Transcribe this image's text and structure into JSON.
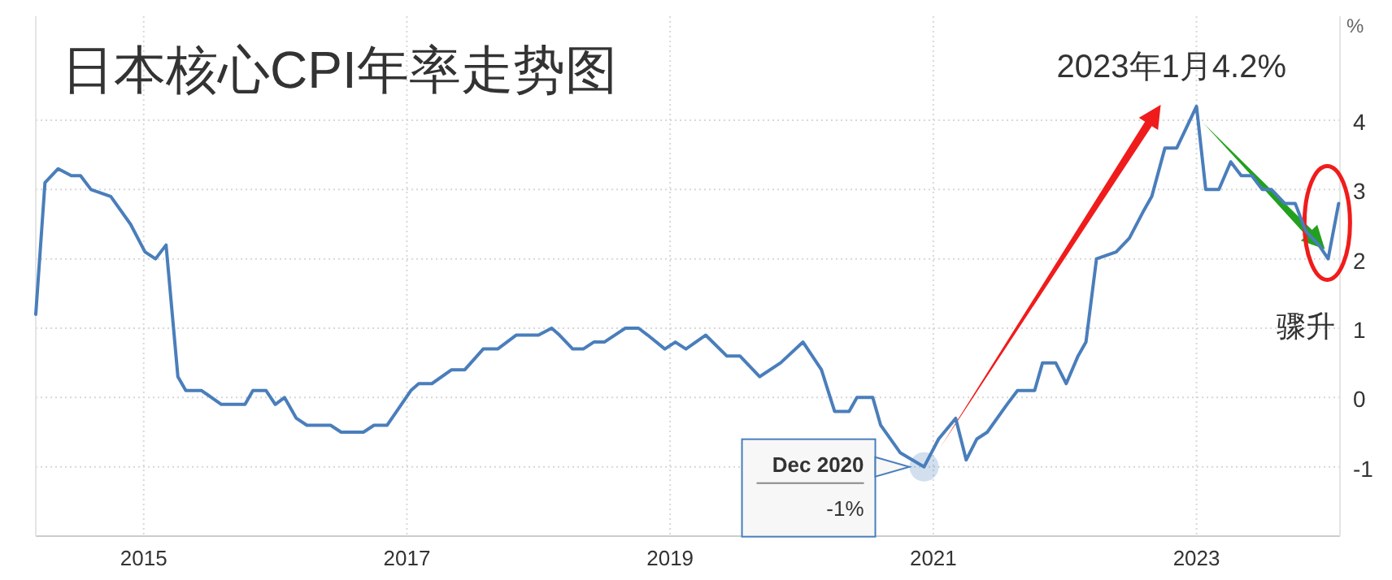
{
  "chart_data": {
    "type": "line",
    "title": "日本核心CPI年率走势图",
    "ylabel": "%",
    "x": [
      2014.18,
      2014.25,
      2014.35,
      2014.45,
      2014.52,
      2014.6,
      2014.75,
      2014.9,
      2015.01,
      2015.09,
      2015.17,
      2015.26,
      2015.32,
      2015.44,
      2015.59,
      2015.77,
      2015.83,
      2015.93,
      2016.0,
      2016.07,
      2016.16,
      2016.24,
      2016.42,
      2016.5,
      2016.67,
      2016.75,
      2016.85,
      2017.03,
      2017.09,
      2017.19,
      2017.34,
      2017.44,
      2017.58,
      2017.69,
      2017.83,
      2018.0,
      2018.1,
      2018.16,
      2018.26,
      2018.34,
      2018.42,
      2018.5,
      2018.66,
      2018.76,
      2018.83,
      2018.96,
      2019.04,
      2019.12,
      2019.27,
      2019.43,
      2019.53,
      2019.68,
      2019.84,
      2020.01,
      2020.15,
      2020.25,
      2020.36,
      2020.42,
      2020.54,
      2020.6,
      2020.75,
      2020.93,
      2021.04,
      2021.17,
      2021.25,
      2021.33,
      2021.41,
      2021.56,
      2021.64,
      2021.77,
      2021.83,
      2021.93,
      2022.01,
      2022.1,
      2022.16,
      2022.24,
      2022.39,
      2022.49,
      2022.6,
      2022.66,
      2022.76,
      2022.85,
      2023.0,
      2023.07,
      2023.17,
      2023.26,
      2023.34,
      2023.42,
      2023.5,
      2023.57,
      2023.67,
      2023.75,
      2023.83,
      2023.93,
      2024.0,
      2024.08
    ],
    "series": [
      {
        "color": "#4a7ebb",
        "values": [
          1.2,
          3.1,
          3.3,
          3.2,
          3.2,
          3.0,
          2.9,
          2.5,
          2.1,
          2.0,
          2.2,
          0.3,
          0.1,
          0.1,
          -0.1,
          -0.1,
          0.1,
          0.1,
          -0.1,
          0.0,
          -0.3,
          -0.4,
          -0.4,
          -0.5,
          -0.5,
          -0.4,
          -0.4,
          0.1,
          0.2,
          0.2,
          0.4,
          0.4,
          0.7,
          0.7,
          0.9,
          0.9,
          1.0,
          0.9,
          0.7,
          0.7,
          0.8,
          0.8,
          1.0,
          1.0,
          0.9,
          0.7,
          0.8,
          0.7,
          0.9,
          0.6,
          0.6,
          0.3,
          0.5,
          0.8,
          0.4,
          -0.2,
          -0.2,
          0.0,
          0.0,
          -0.4,
          -0.8,
          -1.0,
          -0.6,
          -0.3,
          -0.9,
          -0.6,
          -0.5,
          -0.1,
          0.1,
          0.1,
          0.5,
          0.5,
          0.2,
          0.6,
          0.8,
          2.0,
          2.1,
          2.3,
          2.7,
          2.9,
          3.6,
          3.6,
          4.2,
          3.0,
          3.0,
          3.4,
          3.2,
          3.2,
          3.0,
          3.0,
          2.8,
          2.8,
          2.4,
          2.2,
          2.0,
          2.8
        ]
      }
    ],
    "xlim": [
      2014.18,
      2024.09
    ],
    "ylim": [
      -2,
      5.5
    ],
    "xticks": [
      2015,
      2017,
      2019,
      2021,
      2023
    ],
    "yticks": [
      -1,
      0,
      1,
      2,
      3,
      4
    ],
    "grid": true,
    "annotations": [
      {
        "text": "Dec 2020\n-1%",
        "x": 2020.93,
        "y": -1
      },
      {
        "text": "2023年1月4.2%",
        "x": 2023.0,
        "y": 4.2
      },
      "骤升"
    ]
  }
}
